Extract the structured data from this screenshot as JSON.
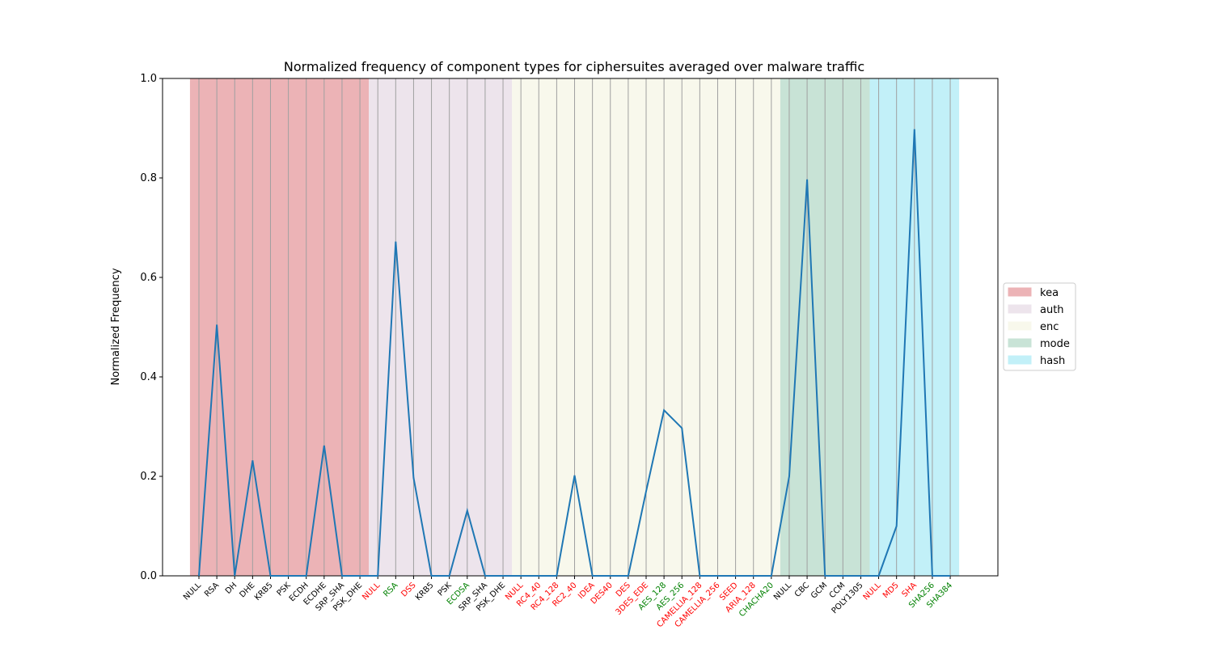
{
  "chart_data": {
    "type": "line",
    "title": "Normalized frequency of component types for ciphersuites averaged over malware traffic",
    "y_label": "Normalized Frequency",
    "categories": [
      "NULL",
      "RSA",
      "DH",
      "DHE",
      "KRB5",
      "PSK",
      "ECDH",
      "ECDHE",
      "SRP_SHA",
      "PSK_DHE",
      "NULL",
      "RSA",
      "DSS",
      "KRB5",
      "PSK",
      "ECDSA",
      "SRP_SHA",
      "PSK_DHE",
      "NULL",
      "RC4_40",
      "RC4_128",
      "RC2_40",
      "IDEA",
      "DES40",
      "DES",
      "3DES_EDE",
      "AES_128",
      "AES_256",
      "CAMELLIA_128",
      "CAMELLIA_256",
      "SEED",
      "ARIA_128",
      "CHACHA20",
      "NULL",
      "CBC",
      "GCM",
      "CCM",
      "POLY1305",
      "NULL",
      "MD5",
      "SHA",
      "SHA256",
      "SHA384"
    ],
    "label_colors": [
      "black",
      "black",
      "black",
      "black",
      "black",
      "black",
      "black",
      "black",
      "black",
      "black",
      "red",
      "green",
      "red",
      "black",
      "black",
      "green",
      "black",
      "black",
      "red",
      "red",
      "red",
      "red",
      "red",
      "red",
      "red",
      "red",
      "green",
      "green",
      "red",
      "red",
      "red",
      "red",
      "green",
      "black",
      "black",
      "black",
      "black",
      "black",
      "red",
      "red",
      "red",
      "green",
      "green"
    ],
    "series": [
      {
        "name": "Normalized Frequency",
        "color": "#1f77b4",
        "values": [
          0,
          0.505,
          0,
          0.232,
          0,
          0,
          0,
          0.262,
          0,
          0,
          0,
          0.672,
          0.197,
          0,
          0,
          0.131,
          0,
          0,
          0,
          0,
          0,
          0.202,
          0,
          0,
          0,
          0.17,
          0.333,
          0.297,
          0,
          0,
          0,
          0,
          0,
          0.2,
          0.797,
          0,
          0,
          0,
          0,
          0.1,
          0.898,
          0,
          0
        ]
      }
    ],
    "regions": [
      {
        "name": "kea",
        "color": "#ecb3b6",
        "count": 10
      },
      {
        "name": "auth",
        "color": "#ede4ec",
        "count": 8
      },
      {
        "name": "enc",
        "color": "#f8f8ec",
        "count": 15
      },
      {
        "name": "mode",
        "color": "#c8e3d6",
        "count": 5
      },
      {
        "name": "hash",
        "color": "#c2f0f8",
        "count": 5
      }
    ],
    "ylim": [
      0,
      1
    ],
    "yticks": [
      {
        "value": 0,
        "label": "0.0"
      },
      {
        "value": 0.2,
        "label": "0.2"
      },
      {
        "value": 0.4,
        "label": "0.4"
      },
      {
        "value": 0.6,
        "label": "0.6"
      },
      {
        "value": 0.8,
        "label": "0.8"
      },
      {
        "value": 1,
        "label": "1.0"
      }
    ],
    "legend": "right"
  }
}
